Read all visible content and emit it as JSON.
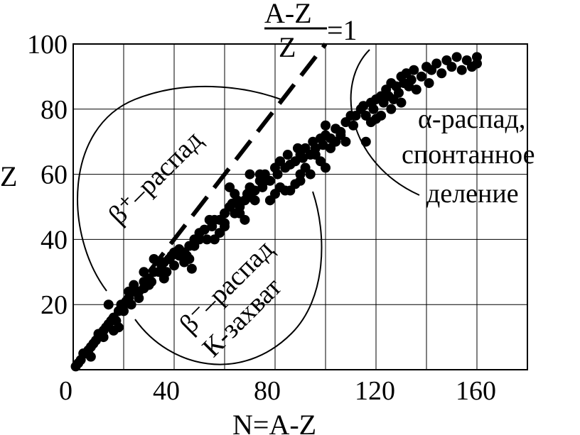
{
  "chart_data": {
    "type": "scatter",
    "xlabel": "N=A-Z",
    "ylabel": "Z",
    "xlim": [
      0,
      180
    ],
    "ylim": [
      0,
      100
    ],
    "x_ticks": [
      0,
      40,
      80,
      120,
      160
    ],
    "y_ticks": [
      20,
      40,
      60,
      80,
      100
    ],
    "grid": true,
    "reference_line": {
      "label_numerator": "A-Z",
      "label_denominator": "Z",
      "label_value": "=1",
      "slope": 1,
      "from": [
        30,
        30
      ],
      "to": [
        100,
        100
      ],
      "style": "dashed"
    },
    "annotations": {
      "beta_plus": "β⁺–распад",
      "beta_minus": "β⁻–распад",
      "k_capture": "К-захват",
      "alpha_line1": "α-распад,",
      "alpha_line2": "спонтанное",
      "alpha_line3": "деление"
    },
    "points": [
      [
        1,
        1
      ],
      [
        2,
        2
      ],
      [
        3,
        3
      ],
      [
        4,
        5
      ],
      [
        5,
        5
      ],
      [
        6,
        6
      ],
      [
        7,
        7
      ],
      [
        7,
        4
      ],
      [
        8,
        8
      ],
      [
        9,
        9
      ],
      [
        10,
        10
      ],
      [
        10,
        11
      ],
      [
        12,
        12
      ],
      [
        13,
        13
      ],
      [
        14,
        14
      ],
      [
        14,
        20
      ],
      [
        15,
        15
      ],
      [
        16,
        16
      ],
      [
        17,
        15
      ],
      [
        18,
        13
      ],
      [
        18,
        18
      ],
      [
        19,
        20
      ],
      [
        20,
        20
      ],
      [
        21,
        21
      ],
      [
        22,
        22
      ],
      [
        22,
        24
      ],
      [
        23,
        20
      ],
      [
        24,
        24
      ],
      [
        26,
        22
      ],
      [
        26,
        24
      ],
      [
        28,
        25
      ],
      [
        28,
        27
      ],
      [
        30,
        26
      ],
      [
        30,
        28
      ],
      [
        31,
        27
      ],
      [
        32,
        30
      ],
      [
        34,
        30
      ],
      [
        35,
        32
      ],
      [
        36,
        33
      ],
      [
        37,
        30
      ],
      [
        38,
        34
      ],
      [
        39,
        35
      ],
      [
        40,
        36
      ],
      [
        40,
        32
      ],
      [
        42,
        35
      ],
      [
        42,
        37
      ],
      [
        44,
        36
      ],
      [
        45,
        35
      ],
      [
        46,
        38
      ],
      [
        46,
        34
      ],
      [
        47,
        31
      ],
      [
        48,
        40
      ],
      [
        50,
        40
      ],
      [
        50,
        42
      ],
      [
        52,
        43
      ],
      [
        53,
        40
      ],
      [
        54,
        46
      ],
      [
        55,
        44
      ],
      [
        56,
        46
      ],
      [
        58,
        46
      ],
      [
        60,
        45
      ],
      [
        60,
        48
      ],
      [
        62,
        50
      ],
      [
        63,
        51
      ],
      [
        64,
        48
      ],
      [
        65,
        52
      ],
      [
        66,
        50
      ],
      [
        68,
        52
      ],
      [
        69,
        54
      ],
      [
        70,
        53
      ],
      [
        70,
        56
      ],
      [
        72,
        55
      ],
      [
        74,
        58
      ],
      [
        75,
        56
      ],
      [
        76,
        60
      ],
      [
        78,
        58
      ],
      [
        80,
        62
      ],
      [
        81,
        60
      ],
      [
        82,
        64
      ],
      [
        84,
        62
      ],
      [
        85,
        66
      ],
      [
        86,
        63
      ],
      [
        88,
        64
      ],
      [
        89,
        68
      ],
      [
        90,
        66
      ],
      [
        91,
        65
      ],
      [
        92,
        68
      ],
      [
        94,
        66
      ],
      [
        95,
        70
      ],
      [
        96,
        68
      ],
      [
        98,
        71
      ],
      [
        99,
        69
      ],
      [
        100,
        72
      ],
      [
        100,
        75
      ],
      [
        102,
        71
      ],
      [
        104,
        74
      ],
      [
        106,
        73
      ],
      [
        108,
        76
      ],
      [
        110,
        78
      ],
      [
        111,
        75
      ],
      [
        112,
        78
      ],
      [
        114,
        80
      ],
      [
        115,
        81
      ],
      [
        116,
        78
      ],
      [
        118,
        82
      ],
      [
        119,
        80
      ],
      [
        120,
        83
      ],
      [
        120,
        77
      ],
      [
        122,
        84
      ],
      [
        123,
        82
      ],
      [
        124,
        86
      ],
      [
        125,
        84
      ],
      [
        126,
        88
      ],
      [
        127,
        83
      ],
      [
        128,
        87
      ],
      [
        129,
        85
      ],
      [
        130,
        90
      ],
      [
        131,
        88
      ],
      [
        132,
        91
      ],
      [
        133,
        87
      ],
      [
        134,
        89
      ],
      [
        135,
        92
      ],
      [
        136,
        86
      ],
      [
        138,
        90
      ],
      [
        140,
        93
      ],
      [
        141,
        88
      ],
      [
        142,
        92
      ],
      [
        144,
        94
      ],
      [
        146,
        91
      ],
      [
        148,
        95
      ],
      [
        150,
        93
      ],
      [
        152,
        96
      ],
      [
        154,
        92
      ],
      [
        156,
        95
      ],
      [
        158,
        93
      ],
      [
        160,
        94
      ],
      [
        160,
        96
      ],
      [
        86,
        55
      ],
      [
        88,
        57
      ],
      [
        90,
        60
      ],
      [
        92,
        62
      ],
      [
        84,
        55
      ],
      [
        76,
        58
      ],
      [
        74,
        60
      ],
      [
        72,
        52
      ],
      [
        66,
        48
      ],
      [
        68,
        46
      ],
      [
        78,
        52
      ],
      [
        80,
        54
      ],
      [
        82,
        56
      ],
      [
        56,
        40
      ],
      [
        58,
        42
      ],
      [
        60,
        44
      ],
      [
        48,
        38
      ],
      [
        44,
        33
      ],
      [
        36,
        28
      ],
      [
        96,
        66
      ],
      [
        102,
        68
      ],
      [
        104,
        70
      ],
      [
        106,
        72
      ],
      [
        108,
        70
      ],
      [
        118,
        76
      ],
      [
        122,
        78
      ],
      [
        126,
        80
      ],
      [
        130,
        82
      ],
      [
        116,
        70
      ],
      [
        12,
        10
      ],
      [
        16,
        12
      ],
      [
        20,
        18
      ],
      [
        24,
        26
      ],
      [
        28,
        30
      ],
      [
        32,
        34
      ],
      [
        64,
        54
      ],
      [
        62,
        56
      ],
      [
        70,
        60
      ],
      [
        90,
        58
      ],
      [
        94,
        60
      ],
      [
        98,
        64
      ],
      [
        100,
        62
      ]
    ]
  }
}
